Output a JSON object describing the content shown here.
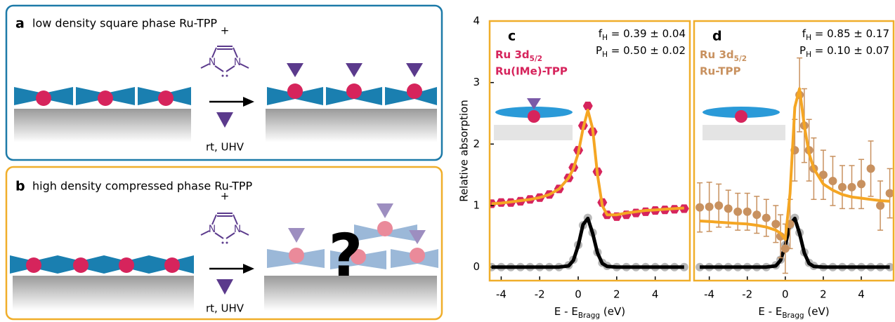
{
  "panel_a": {
    "label": "a",
    "title": "low density square phase Ru-TPP",
    "plus": "+",
    "n_left": "N",
    "n_right": "N",
    "conditions": "rt, UHV"
  },
  "panel_b": {
    "label": "b",
    "title": "high density compressed phase Ru-TPP",
    "plus": "+",
    "n_left": "N",
    "n_right": "N",
    "conditions": "rt, UHV",
    "question": "?"
  },
  "chart_data": [
    {
      "type": "line",
      "panel_label": "c",
      "annotations": [
        {
          "base": "f",
          "sub": "H",
          "text": " = 0.39 ± 0.04"
        },
        {
          "base": "P",
          "sub": "H",
          "text": " = 0.50 ± 0.02"
        }
      ],
      "legend_title": {
        "base": "Ru 3d",
        "sub": "5/2"
      },
      "y_label": "Relative absorption",
      "x_label": {
        "base": "E - E",
        "sub": "Bragg",
        "text": " (eV)"
      },
      "xlim": [
        -4.6,
        5.8
      ],
      "xticks": [
        -4,
        -2,
        0,
        2,
        4
      ],
      "ylim": [
        -0.22,
        4
      ],
      "yticks": [
        0,
        1,
        2,
        3,
        4
      ],
      "frame_color": "#f0ae2a",
      "x": [
        -4.5,
        -4,
        -3.5,
        -3,
        -2.5,
        -2,
        -1.5,
        -1,
        -0.5,
        -0.25,
        0,
        0.25,
        0.5,
        0.75,
        1,
        1.25,
        1.5,
        2,
        2.5,
        3,
        3.5,
        4,
        4.5,
        5,
        5.5
      ],
      "series": [
        {
          "mode": "markers",
          "marker": "circle",
          "color": "#b8b8b8",
          "values": [
            0,
            0,
            0,
            0,
            0,
            0,
            0,
            0,
            0.03,
            0.12,
            0.36,
            0.68,
            0.8,
            0.56,
            0.24,
            0.07,
            0.02,
            0,
            0,
            0,
            0,
            0,
            0,
            0,
            0
          ]
        },
        {
          "mode": "line",
          "color": "#000000",
          "values": [
            0,
            0,
            0,
            0,
            0,
            0,
            0,
            0,
            0.02,
            0.11,
            0.35,
            0.69,
            0.79,
            0.55,
            0.23,
            0.06,
            0.01,
            0,
            0,
            0,
            0,
            0,
            0,
            0,
            0
          ]
        },
        {
          "name": "Ru(IMe)-TPP",
          "mode": "markers",
          "marker": "hexagon",
          "color": "#d6245c",
          "values": [
            1.03,
            1.05,
            1.05,
            1.07,
            1.1,
            1.13,
            1.18,
            1.27,
            1.45,
            1.62,
            1.9,
            2.3,
            2.62,
            2.2,
            1.55,
            1.05,
            0.85,
            0.82,
            0.85,
            0.88,
            0.9,
            0.92,
            0.93,
            0.94,
            0.95
          ]
        },
        {
          "mode": "line",
          "color": "#f5a623",
          "values": [
            1.03,
            1.04,
            1.06,
            1.08,
            1.1,
            1.13,
            1.18,
            1.27,
            1.45,
            1.6,
            1.85,
            2.25,
            2.55,
            2.25,
            1.5,
            1.0,
            0.85,
            0.85,
            0.88,
            0.9,
            0.92,
            0.93,
            0.94,
            0.95,
            0.96
          ]
        }
      ]
    },
    {
      "type": "line",
      "panel_label": "d",
      "annotations": [
        {
          "base": "f",
          "sub": "H",
          "text": " = 0.85 ± 0.17"
        },
        {
          "base": "P",
          "sub": "H",
          "text": " = 0.10 ± 0.07"
        }
      ],
      "legend_title": {
        "base": "Ru 3d",
        "sub": "5/2"
      },
      "x_label": {
        "base": "E - E",
        "sub": "Bragg",
        "text": " (eV)"
      },
      "xlim": [
        -4.8,
        5.7
      ],
      "xticks": [
        -4,
        -2,
        0,
        2,
        4
      ],
      "ylim": [
        -0.22,
        4
      ],
      "frame_color": "#f0ae2a",
      "x": [
        -4.5,
        -4,
        -3.5,
        -3,
        -2.5,
        -2,
        -1.5,
        -1,
        -0.5,
        -0.25,
        0,
        0.25,
        0.5,
        0.75,
        1,
        1.25,
        1.5,
        2,
        2.5,
        3,
        3.5,
        4,
        4.5,
        5,
        5.5
      ],
      "series": [
        {
          "mode": "markers",
          "marker": "circle",
          "color": "#b8b8b8",
          "values": [
            0,
            0,
            0,
            0,
            0,
            0,
            0,
            0,
            0.03,
            0.12,
            0.36,
            0.68,
            0.8,
            0.56,
            0.24,
            0.07,
            0.02,
            0,
            0,
            0,
            0,
            0,
            0,
            0,
            0
          ]
        },
        {
          "mode": "line",
          "color": "#000000",
          "values": [
            0,
            0,
            0,
            0,
            0,
            0,
            0,
            0,
            0.02,
            0.11,
            0.35,
            0.69,
            0.79,
            0.55,
            0.23,
            0.06,
            0.01,
            0,
            0,
            0,
            0,
            0,
            0,
            0,
            0
          ]
        },
        {
          "name": "Ru-TPP",
          "mode": "markers",
          "marker": "circle",
          "color": "#c8915f",
          "values": [
            0.97,
            0.98,
            1.0,
            0.95,
            0.9,
            0.9,
            0.85,
            0.8,
            0.7,
            0.5,
            0.3,
            0.7,
            1.9,
            2.8,
            2.3,
            1.9,
            1.6,
            1.5,
            1.4,
            1.3,
            1.3,
            1.35,
            1.6,
            1.0,
            1.2
          ],
          "errors": [
            0.4,
            0.4,
            0.35,
            0.3,
            0.3,
            0.3,
            0.3,
            0.3,
            0.3,
            0.35,
            0.4,
            0.4,
            0.5,
            0.6,
            0.6,
            0.5,
            0.5,
            0.4,
            0.4,
            0.35,
            0.35,
            0.4,
            0.45,
            0.4,
            0.4
          ]
        },
        {
          "mode": "line",
          "color": "#f5a623",
          "values": [
            0.75,
            0.74,
            0.73,
            0.72,
            0.71,
            0.7,
            0.68,
            0.65,
            0.6,
            0.55,
            0.45,
            1.2,
            2.6,
            2.9,
            2.3,
            1.85,
            1.6,
            1.35,
            1.25,
            1.18,
            1.14,
            1.12,
            1.1,
            1.08,
            1.07
          ]
        }
      ]
    }
  ]
}
